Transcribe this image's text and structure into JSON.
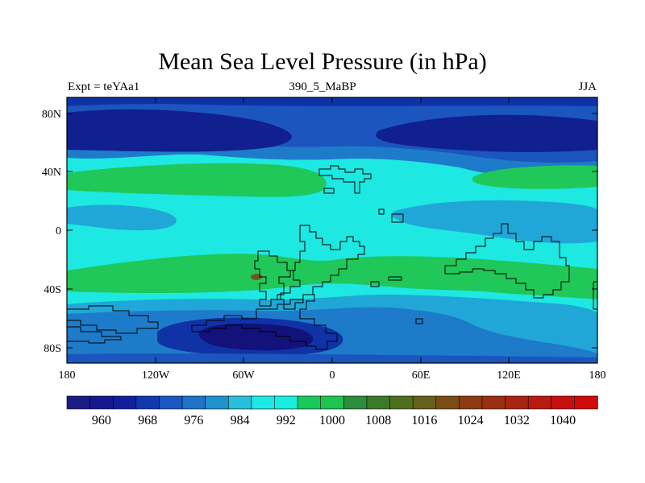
{
  "title": "Mean Sea Level Pressure (in hPa)",
  "subtitle_left": "Expt = teYAa1",
  "subtitle_center": "390_5_MaBP",
  "subtitle_right": "JJA",
  "x_ticks": [
    "180",
    "120W",
    "60W",
    "0",
    "60E",
    "120E",
    "180"
  ],
  "y_ticks": [
    "80N",
    "40N",
    "0",
    "40S",
    "80S"
  ],
  "colorbar": {
    "labels": [
      "960",
      "968",
      "976",
      "984",
      "992",
      "1000",
      "1008",
      "1016",
      "1024",
      "1032",
      "1040"
    ],
    "colors": [
      "#1b1b85",
      "#15188e",
      "#101f9c",
      "#1238b0",
      "#1a57c0",
      "#1e72c8",
      "#1f92d0",
      "#29bfdc",
      "#1ee8e3",
      "#17eee0",
      "#18c85a",
      "#1fc351",
      "#2c8d3c",
      "#3b7a2a",
      "#4f6f1f",
      "#66601a",
      "#7c4c16",
      "#8c3b13",
      "#993012",
      "#a82412",
      "#b81a12",
      "#c80f10",
      "#d00a0a"
    ]
  },
  "map_colors": {
    "c960": "#12127a",
    "c968": "#10208f",
    "c976": "#0f33a6",
    "c984": "#1b55bd",
    "c992": "#1e7bc9",
    "c1000": "#20a7d8",
    "c1004": "#1de8e1",
    "c1008": "#20c85a",
    "c1016": "#6b5c1e"
  }
}
